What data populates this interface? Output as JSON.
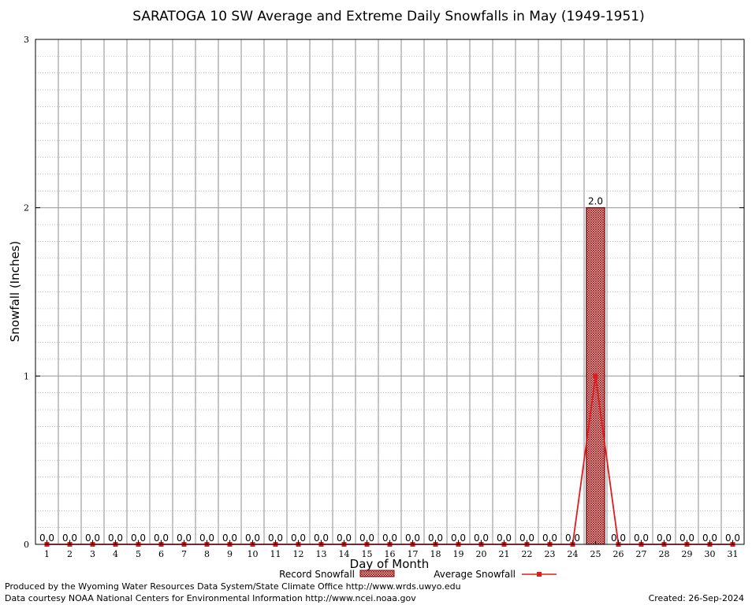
{
  "chart_data": {
    "type": "bar",
    "title": "SARATOGA 10 SW Average and Extreme Daily Snowfalls in May (1949-1951)",
    "xlabel": "Day of Month",
    "ylabel": "Snowfall (Inches)",
    "ylim": [
      0,
      3
    ],
    "yticks": [
      "0",
      "1",
      "2",
      "3"
    ],
    "grid": true,
    "legend_position": "bottom",
    "categories": [
      "1",
      "2",
      "3",
      "4",
      "5",
      "6",
      "7",
      "8",
      "9",
      "10",
      "11",
      "12",
      "13",
      "14",
      "15",
      "16",
      "17",
      "18",
      "19",
      "20",
      "21",
      "22",
      "23",
      "24",
      "25",
      "26",
      "27",
      "28",
      "29",
      "30",
      "31"
    ],
    "series": [
      {
        "name": "Record Snowfall",
        "kind": "bar",
        "color": "#8b0000",
        "values": [
          0,
          0,
          0,
          0,
          0,
          0,
          0,
          0,
          0,
          0,
          0,
          0,
          0,
          0,
          0,
          0,
          0,
          0,
          0,
          0,
          0,
          0,
          0,
          0,
          2.0,
          0,
          0,
          0,
          0,
          0,
          0
        ],
        "labels": [
          "0.0",
          "0.0",
          "0.0",
          "0.0",
          "0.0",
          "0.0",
          "0.0",
          "0.0",
          "0.0",
          "0.0",
          "0.0",
          "0.0",
          "0.0",
          "0.0",
          "0.0",
          "0.0",
          "0.0",
          "0.0",
          "0.0",
          "0.0",
          "0.0",
          "0.0",
          "0.0",
          "0.0",
          "2.0",
          "0.0",
          "0.0",
          "0.0",
          "0.0",
          "0.0",
          "0.0"
        ]
      },
      {
        "name": "Average Snowfall",
        "kind": "line",
        "color": "#e31a1c",
        "values": [
          0,
          0,
          0,
          0,
          0,
          0,
          0,
          0,
          0,
          0,
          0,
          0,
          0,
          0,
          0,
          0,
          0,
          0,
          0,
          0,
          0,
          0,
          0,
          0,
          1.0,
          0,
          0,
          0,
          0,
          0,
          0
        ]
      }
    ]
  },
  "footer": {
    "line1": "Produced by the Wyoming Water Resources Data System/State Climate Office http://www.wrds.uwyo.edu",
    "line2": "Data courtesy NOAA National Centers for Environmental Information http://www.ncei.noaa.gov",
    "created": "Created:  26-Sep-2024"
  }
}
